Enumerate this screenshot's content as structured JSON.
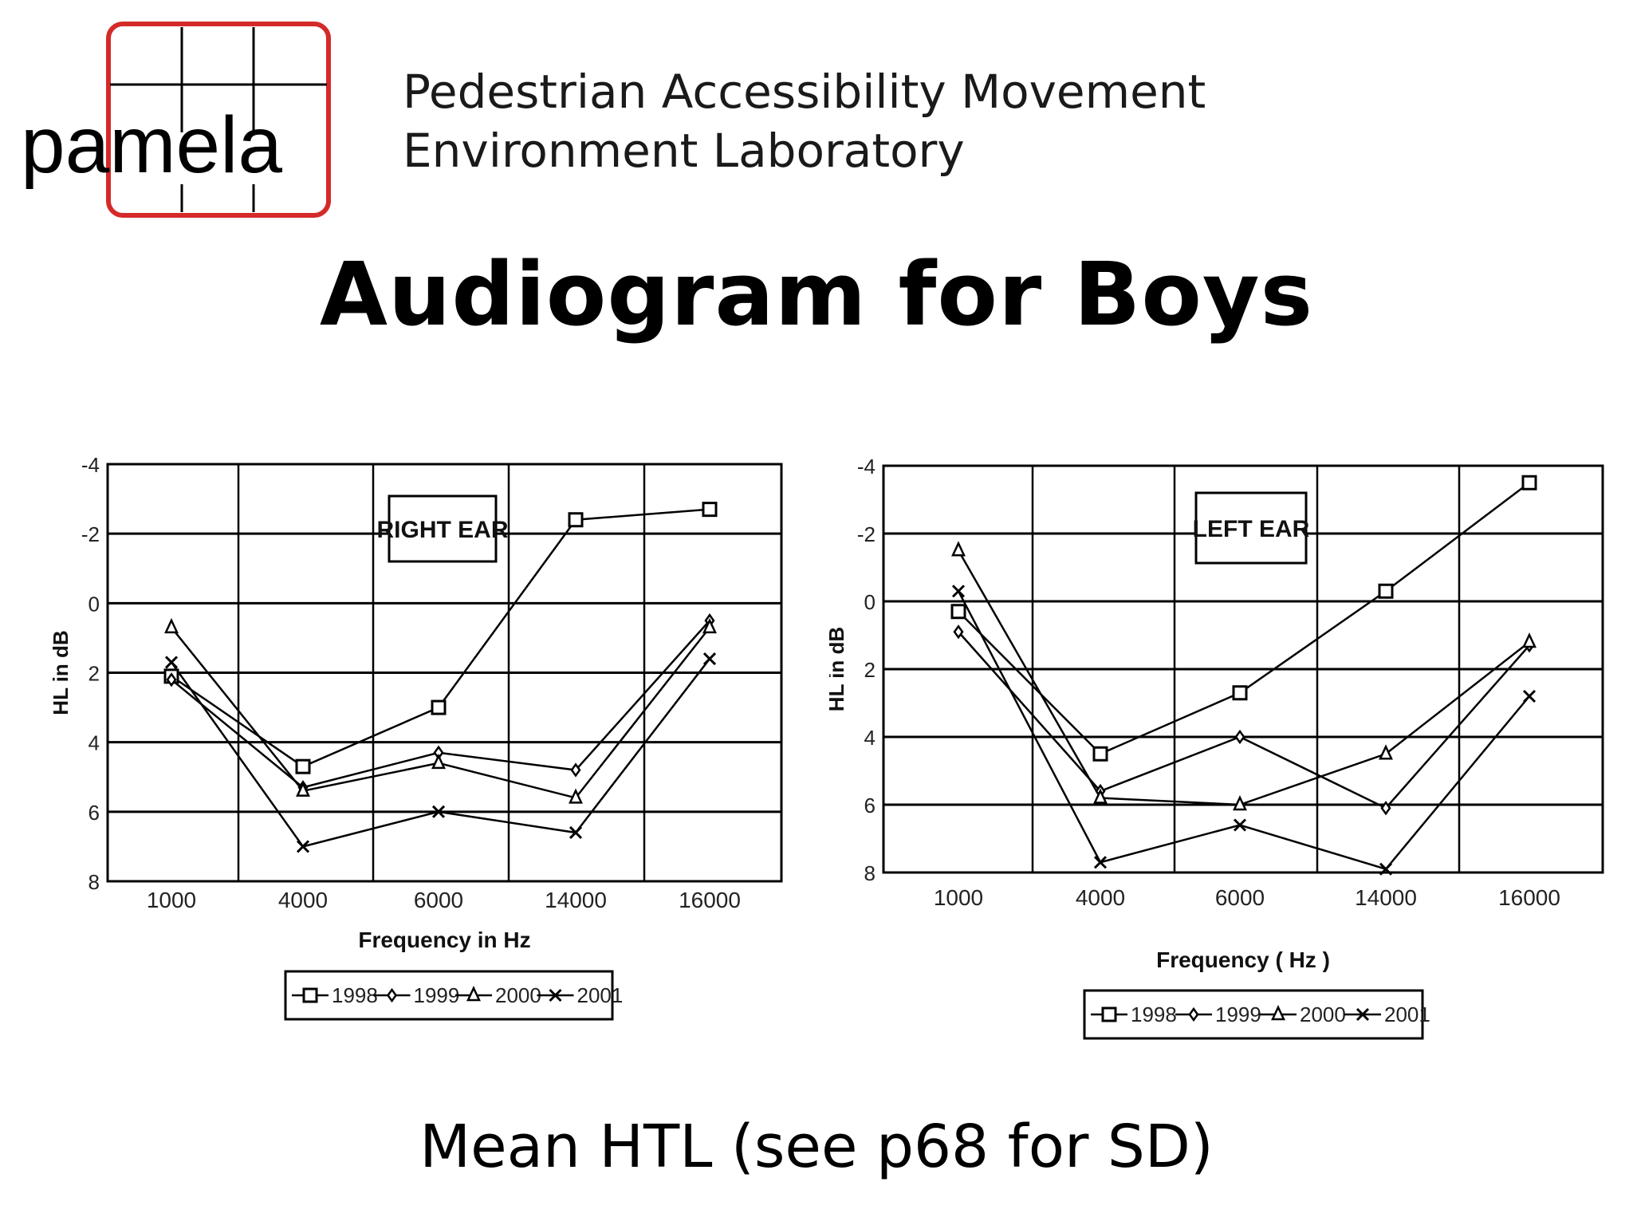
{
  "header": {
    "logo_text": "pamela",
    "org_line1": "Pedestrian Accessibility Movement",
    "org_line2": "Environment Laboratory"
  },
  "title": "Audiogram for Boys",
  "footer": "Mean HTL (see p68 for SD)",
  "colors": {
    "logo_red": "#d42a2a",
    "ink": "#000000"
  },
  "chart_data": [
    {
      "type": "line",
      "title": "RIGHT EAR",
      "xlabel": "Frequency in Hz",
      "ylabel": "HL in dB",
      "categories": [
        "1000",
        "4000",
        "6000",
        "14000",
        "16000"
      ],
      "ylim": [
        -4,
        8
      ],
      "y_inverted": true,
      "yticks": [
        "-4",
        "-2",
        "0",
        "2",
        "4",
        "6",
        "8"
      ],
      "grid": true,
      "legend_position": "bottom",
      "series": [
        {
          "name": "1998",
          "marker": "square",
          "values": [
            2.1,
            4.7,
            3.0,
            -2.4,
            -2.7
          ]
        },
        {
          "name": "1999",
          "marker": "diamond",
          "values": [
            2.2,
            5.3,
            4.3,
            4.8,
            0.5
          ]
        },
        {
          "name": "2000",
          "marker": "triangle",
          "values": [
            0.7,
            5.4,
            4.6,
            5.6,
            0.7
          ]
        },
        {
          "name": "2001",
          "marker": "x",
          "values": [
            1.7,
            7.0,
            6.0,
            6.6,
            1.6
          ]
        }
      ]
    },
    {
      "type": "line",
      "title": "LEFT EAR",
      "xlabel": "Frequency ( Hz )",
      "ylabel": "HL in dB",
      "categories": [
        "1000",
        "4000",
        "6000",
        "14000",
        "16000"
      ],
      "ylim": [
        -4,
        8
      ],
      "y_inverted": true,
      "yticks": [
        "-4",
        "-2",
        "0",
        "2",
        "4",
        "6",
        "8"
      ],
      "grid": true,
      "legend_position": "bottom",
      "series": [
        {
          "name": "1998",
          "marker": "square",
          "values": [
            0.3,
            4.5,
            2.7,
            -0.3,
            -3.5
          ]
        },
        {
          "name": "1999",
          "marker": "diamond",
          "values": [
            0.9,
            5.6,
            4.0,
            6.1,
            1.3
          ]
        },
        {
          "name": "2000",
          "marker": "triangle",
          "values": [
            -1.5,
            5.8,
            6.0,
            4.5,
            1.2
          ]
        },
        {
          "name": "2001",
          "marker": "x",
          "values": [
            -0.3,
            7.7,
            6.6,
            7.9,
            2.8
          ]
        }
      ]
    }
  ]
}
